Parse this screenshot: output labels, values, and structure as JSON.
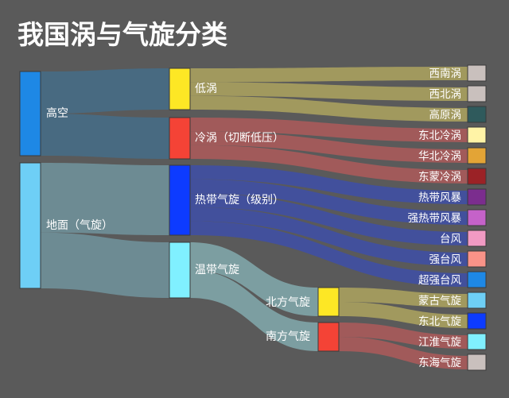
{
  "title": "我国涡与气旋分类",
  "chart_data": {
    "type": "sankey",
    "nodes": [
      {
        "id": "gaokong",
        "label": "高空",
        "color": "#1e88e5"
      },
      {
        "id": "dimian",
        "label": "地面（气旋）",
        "color": "#6ecff6"
      },
      {
        "id": "diwo",
        "label": "低涡",
        "color": "#fde725"
      },
      {
        "id": "lengwo",
        "label": "冷涡（切断低压）",
        "color": "#f44336"
      },
      {
        "id": "redai",
        "label": "热带气旋（级别）",
        "color": "#0d3bff"
      },
      {
        "id": "wendai",
        "label": "温带气旋",
        "color": "#80f0ff"
      },
      {
        "id": "beifang",
        "label": "北方气旋",
        "color": "#fde725"
      },
      {
        "id": "nanfang",
        "label": "南方气旋",
        "color": "#f44336"
      }
    ],
    "leaves": [
      {
        "label": "西南涡",
        "color": "#c9c0bd",
        "parent": "diwo"
      },
      {
        "label": "西北涡",
        "color": "#c9c0bd",
        "parent": "diwo"
      },
      {
        "label": "高原涡",
        "color": "#2f5a5c",
        "parent": "diwo"
      },
      {
        "label": "东北冷涡",
        "color": "#fff3a6",
        "parent": "lengwo"
      },
      {
        "label": "华北冷涡",
        "color": "#e3a436",
        "parent": "lengwo"
      },
      {
        "label": "东蒙冷涡",
        "color": "#9b2226",
        "parent": "lengwo"
      },
      {
        "label": "热带风暴",
        "color": "#7b2d8e",
        "parent": "redai"
      },
      {
        "label": "强热带风暴",
        "color": "#c562c9",
        "parent": "redai"
      },
      {
        "label": "台风",
        "color": "#f19ac3",
        "parent": "redai"
      },
      {
        "label": "强台风",
        "color": "#f99388",
        "parent": "redai"
      },
      {
        "label": "超强台风",
        "color": "#1e88e5",
        "parent": "redai"
      },
      {
        "label": "蒙古气旋",
        "color": "#6ecff6",
        "parent": "beifang"
      },
      {
        "label": "东北气旋",
        "color": "#0d3bff",
        "parent": "beifang"
      },
      {
        "label": "江淮气旋",
        "color": "#80f0ff",
        "parent": "nanfang"
      },
      {
        "label": "东海气旋",
        "color": "#c9c0bd",
        "parent": "nanfang"
      }
    ],
    "links": [
      {
        "source": "gaokong",
        "target": "diwo",
        "value": 3
      },
      {
        "source": "gaokong",
        "target": "lengwo",
        "value": 3
      },
      {
        "source": "dimian",
        "target": "redai",
        "value": 5
      },
      {
        "source": "dimian",
        "target": "wendai",
        "value": 4
      },
      {
        "source": "wendai",
        "target": "beifang",
        "value": 2
      },
      {
        "source": "wendai",
        "target": "nanfang",
        "value": 2
      }
    ],
    "link_colors": {
      "diwo": "#a8a05e",
      "lengwo": "#a95a5a",
      "redai": "#3f4fa3",
      "wendai": "#7fa5a8",
      "beifang": "#a8a05e",
      "nanfang": "#a95a5a",
      "gaokong": "#466b85",
      "dimian": "#6f9099"
    }
  }
}
